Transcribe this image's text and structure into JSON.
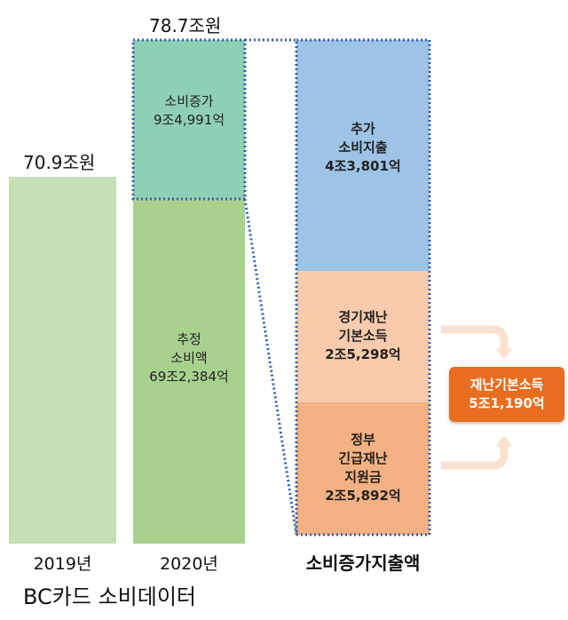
{
  "chart_data": {
    "type": "bar",
    "source": "BC카드 소비데이터",
    "categories": [
      "2019년",
      "2020년"
    ],
    "bars": [
      {
        "category": "2019년",
        "total_label": "70.9조원",
        "value": 70.9,
        "segments": [
          {
            "label": "",
            "value": 70.9,
            "color": "#c5e0b4"
          }
        ]
      },
      {
        "category": "2020년",
        "total_label": "78.7조원",
        "value": 78.7,
        "segments": [
          {
            "label": "추정\n소비액\n69조2,384억",
            "value": 69.2384,
            "color": "#a9d18e"
          },
          {
            "label": "소비증가\n9조4,991억",
            "value": 9.4991,
            "color": "#8fcfb6"
          }
        ]
      }
    ],
    "breakdown": {
      "title": "소비증가지출액",
      "segments": [
        {
          "label": "추가\n소비지출\n4조3,801억",
          "value": 4.3801,
          "color": "#9dc3e6"
        },
        {
          "label": "경기재난\n기본소득\n2조5,298억",
          "value": 2.5298,
          "color": "#f8cbad"
        },
        {
          "label": "정부\n긴급재난\n지원금\n2조5,892억",
          "value": 2.5892,
          "color": "#f4b183"
        }
      ]
    },
    "callout": {
      "label": "재난기본소득\n5조1,190억",
      "value": 5.119,
      "color": "#e86d1f"
    },
    "y_scale_max": 78.7
  }
}
